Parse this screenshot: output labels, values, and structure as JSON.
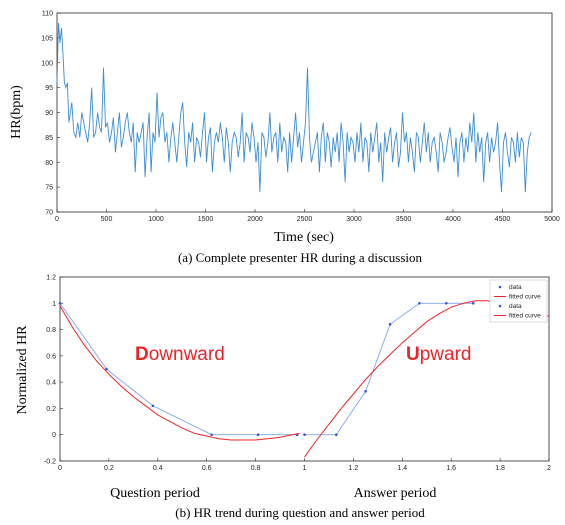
{
  "chart_data": [
    {
      "type": "line",
      "ylabel": "HR(bpm)",
      "xlabel": "Time (sec)",
      "caption": "(a) Complete presenter HR during a discussion",
      "xlim": [
        0,
        5000
      ],
      "ylim": [
        70,
        110
      ],
      "x_ticks": [
        "0",
        "500",
        "1000",
        "1500",
        "2000",
        "2500",
        "3000",
        "3500",
        "4000",
        "4500",
        "5000"
      ],
      "y_ticks": [
        "70",
        "75",
        "80",
        "85",
        "90",
        "95",
        "100",
        "105",
        "110"
      ],
      "grid": false,
      "color": "#3d8ecf",
      "series": [
        {
          "x": [
            0,
            15,
            30,
            45,
            60,
            75,
            90,
            105,
            120,
            135,
            150,
            170,
            190,
            210,
            230,
            250,
            270,
            290,
            310,
            330,
            350,
            370,
            390,
            410,
            430,
            450,
            470,
            490,
            510,
            530,
            550,
            570,
            590,
            610,
            630,
            650,
            670,
            690,
            710,
            730,
            750,
            770,
            790,
            810,
            830,
            850,
            870,
            890,
            910,
            930,
            950,
            970,
            990,
            1010,
            1030,
            1050,
            1070,
            1090,
            1110,
            1130,
            1150,
            1170,
            1190,
            1210,
            1230,
            1250,
            1270,
            1290,
            1310,
            1330,
            1350,
            1370,
            1390,
            1410,
            1430,
            1450,
            1470,
            1490,
            1510,
            1530,
            1550,
            1570,
            1590,
            1610,
            1630,
            1650,
            1670,
            1690,
            1710,
            1730,
            1750,
            1770,
            1790,
            1810,
            1830,
            1850,
            1870,
            1890,
            1910,
            1930,
            1950,
            1970,
            1990,
            2010,
            2030,
            2050,
            2070,
            2090,
            2110,
            2130,
            2150,
            2170,
            2190,
            2210,
            2230,
            2250,
            2270,
            2290,
            2310,
            2330,
            2350,
            2370,
            2390,
            2410,
            2430,
            2450,
            2470,
            2490,
            2510,
            2530,
            2550,
            2570,
            2590,
            2610,
            2630,
            2650,
            2670,
            2690,
            2710,
            2730,
            2750,
            2770,
            2790,
            2810,
            2830,
            2850,
            2870,
            2890,
            2910,
            2930,
            2950,
            2970,
            2990,
            3010,
            3030,
            3050,
            3070,
            3090,
            3110,
            3130,
            3150,
            3170,
            3190,
            3210,
            3230,
            3250,
            3270,
            3290,
            3310,
            3330,
            3350,
            3370,
            3390,
            3410,
            3430,
            3450,
            3470,
            3490,
            3510,
            3530,
            3550,
            3570,
            3590,
            3610,
            3630,
            3650,
            3670,
            3690,
            3710,
            3730,
            3750,
            3770,
            3790,
            3810,
            3830,
            3850,
            3870,
            3890,
            3910,
            3930,
            3950,
            3970,
            3990,
            4010,
            4030,
            4050,
            4070,
            4090,
            4110,
            4130,
            4150,
            4170,
            4190,
            4210,
            4230,
            4250,
            4270,
            4290,
            4310,
            4330,
            4350,
            4370,
            4390,
            4410,
            4430,
            4450,
            4470,
            4490,
            4510,
            4530,
            4550,
            4570,
            4590,
            4610,
            4630,
            4650,
            4670,
            4690,
            4710,
            4730,
            4750,
            4770,
            4790
          ],
          "y": [
            96,
            108,
            104,
            107,
            102,
            96,
            95,
            96,
            88,
            90,
            92,
            86,
            85,
            88,
            85,
            90,
            88,
            86,
            84,
            88,
            95,
            85,
            86,
            90,
            87,
            86,
            99,
            87,
            88,
            84,
            86,
            89,
            82,
            86,
            90,
            83,
            85,
            88,
            90,
            86,
            84,
            88,
            78,
            86,
            84,
            86,
            88,
            77,
            85,
            90,
            78,
            86,
            84,
            94,
            85,
            89,
            90,
            84,
            86,
            80,
            85,
            88,
            84,
            80,
            85,
            90,
            92,
            84,
            79,
            86,
            84,
            88,
            80,
            85,
            84,
            81,
            86,
            90,
            80,
            85,
            87,
            78,
            84,
            86,
            84,
            88,
            85,
            80,
            87,
            84,
            78,
            84,
            86,
            85,
            81,
            84,
            90,
            80,
            86,
            85,
            82,
            88,
            85,
            80,
            84,
            74,
            86,
            85,
            81,
            84,
            90,
            82,
            85,
            86,
            80,
            88,
            82,
            85,
            84,
            78,
            86,
            80,
            85,
            90,
            83,
            86,
            80,
            84,
            88,
            99,
            85,
            80,
            82,
            84,
            86,
            78,
            85,
            88,
            80,
            86,
            84,
            79,
            85,
            82,
            86,
            80,
            88,
            84,
            76,
            86,
            82,
            85,
            84,
            80,
            86,
            82,
            88,
            80,
            85,
            84,
            78,
            86,
            82,
            85,
            88,
            80,
            84,
            76,
            86,
            82,
            85,
            87,
            80,
            84,
            86,
            79,
            82,
            90,
            84,
            86,
            80,
            85,
            82,
            78,
            86,
            85,
            80,
            84,
            88,
            82,
            86,
            80,
            84,
            85,
            82,
            78,
            86,
            84,
            80,
            82,
            85,
            87,
            83,
            80,
            85,
            77,
            84,
            86,
            80,
            85,
            82,
            88,
            84,
            90,
            80,
            86,
            82,
            85,
            76,
            84,
            86,
            80,
            85,
            82,
            84,
            88,
            80,
            74,
            84,
            86,
            82,
            79,
            85,
            84,
            80,
            86,
            81,
            85,
            84,
            74,
            82,
            85,
            86
          ]
        }
      ]
    },
    {
      "type": "line",
      "ylabel": "Normalized HR",
      "caption": "(b) HR trend during question and answer period",
      "xlim": [
        0,
        2
      ],
      "ylim": [
        -0.2,
        1.2
      ],
      "x_ticks": [
        "0",
        "0.2",
        "0.4",
        "0.6",
        "0.8",
        "1",
        "1.2",
        "1.4",
        "1.6",
        "1.8",
        "2"
      ],
      "y_ticks": [
        "-0.2",
        "0",
        "0.2",
        "0.4",
        "0.6",
        "0.8",
        "1",
        "1.2"
      ],
      "x_annotations": [
        "Question period",
        "Answer period"
      ],
      "annotations": [
        "Downward",
        "Upward"
      ],
      "legend": [
        "data",
        "fitted curve",
        "data",
        "fitted curve"
      ],
      "legend_position": "top-right",
      "colors": {
        "data": "#3355dd",
        "fit": "#e8262a"
      },
      "series": [
        {
          "kind": "data",
          "x": [
            0,
            0.19,
            0.38,
            0.62,
            0.81,
            0.97
          ],
          "y": [
            1.0,
            0.5,
            0.22,
            0.0,
            0.0,
            0.0
          ]
        },
        {
          "kind": "fit",
          "x": [
            0,
            0.05,
            0.1,
            0.15,
            0.2,
            0.25,
            0.3,
            0.35,
            0.4,
            0.45,
            0.5,
            0.55,
            0.6,
            0.65,
            0.7,
            0.75,
            0.8,
            0.85,
            0.9,
            0.95,
            0.98
          ],
          "y": [
            0.98,
            0.82,
            0.68,
            0.56,
            0.46,
            0.37,
            0.29,
            0.22,
            0.15,
            0.1,
            0.05,
            0.01,
            -0.01,
            -0.03,
            -0.04,
            -0.04,
            -0.04,
            -0.03,
            -0.02,
            0.0,
            0.01
          ]
        },
        {
          "kind": "data",
          "x": [
            1.0,
            1.13,
            1.25,
            1.35,
            1.47,
            1.58,
            1.69
          ],
          "y": [
            0.0,
            0.0,
            0.33,
            0.84,
            1.0,
            1.0,
            1.0
          ]
        },
        {
          "kind": "fit",
          "x": [
            1.0,
            1.05,
            1.1,
            1.15,
            1.2,
            1.25,
            1.3,
            1.35,
            1.4,
            1.45,
            1.5,
            1.55,
            1.6,
            1.65,
            1.7,
            1.75,
            1.8,
            1.9,
            2.0
          ],
          "y": [
            -0.17,
            -0.04,
            0.08,
            0.2,
            0.31,
            0.42,
            0.52,
            0.61,
            0.7,
            0.78,
            0.86,
            0.92,
            0.97,
            1.0,
            1.02,
            1.02,
            1.0,
            0.96,
            0.9
          ]
        }
      ]
    }
  ]
}
